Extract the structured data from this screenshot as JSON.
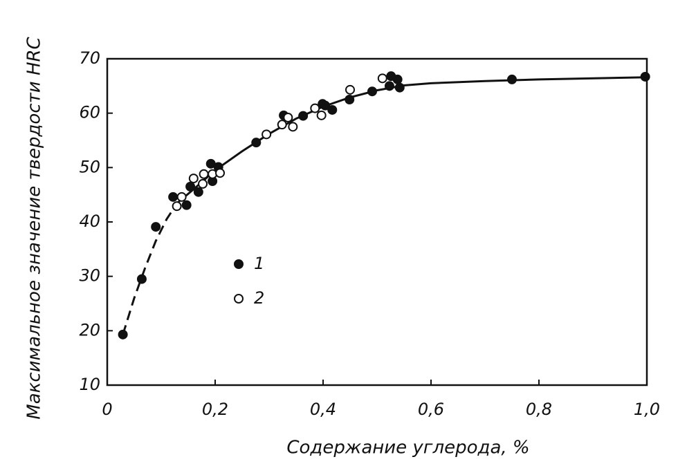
{
  "chart_data": {
    "type": "scatter",
    "x_label": "Содержание углерода, %",
    "y_label": "Максимальное значение твердости HRC",
    "xlim": [
      0,
      1.0
    ],
    "ylim": [
      10,
      70
    ],
    "xticks": [
      0,
      {
        "value": 0.2,
        "label": "0,2"
      },
      {
        "value": 0.4,
        "label": "0,4"
      },
      {
        "value": 0.6,
        "label": "0,6"
      },
      {
        "value": 0.8,
        "label": "0,8"
      },
      {
        "value": 1.0,
        "label": "1,0"
      }
    ],
    "yticks": [
      10,
      20,
      30,
      40,
      50,
      60,
      70
    ],
    "legend": "center-left",
    "series": [
      {
        "name": "1",
        "color": "#111111",
        "marker": "filled",
        "x": [
          0.029,
          0.064,
          0.09,
          0.122,
          0.147,
          0.154,
          0.169,
          0.192,
          0.195,
          0.206,
          0.276,
          0.327,
          0.363,
          0.399,
          0.404,
          0.417,
          0.449,
          0.491,
          0.526,
          0.523,
          0.538,
          0.542,
          0.75,
          0.997
        ],
        "values": [
          19.3,
          29.5,
          39.1,
          44.6,
          43.1,
          46.5,
          45.5,
          50.7,
          47.5,
          50.1,
          54.6,
          59.6,
          59.5,
          61.7,
          61.4,
          60.6,
          62.5,
          64.0,
          66.8,
          65.0,
          66.2,
          64.7,
          66.2,
          66.7
        ]
      },
      {
        "name": "2",
        "color": "#111111",
        "marker": "open",
        "x": [
          0.129,
          0.138,
          0.16,
          0.177,
          0.179,
          0.195,
          0.209,
          0.295,
          0.324,
          0.335,
          0.344,
          0.385,
          0.397,
          0.45,
          0.51
        ],
        "values": [
          42.9,
          44.6,
          48.0,
          47.0,
          48.8,
          48.8,
          49.0,
          56.1,
          57.9,
          59.2,
          57.5,
          60.9,
          59.6,
          64.3,
          66.4
        ]
      }
    ],
    "lines": [
      {
        "style": "dashed",
        "color": "#111111",
        "x": [
          0.029,
          0.05,
          0.07,
          0.09,
          0.11,
          0.13
        ],
        "values": [
          19.3,
          26,
          31.5,
          36.5,
          40.5,
          43.5
        ]
      },
      {
        "style": "solid",
        "color": "#111111",
        "x": [
          0.13,
          0.16,
          0.2,
          0.25,
          0.3,
          0.35,
          0.4,
          0.45,
          0.5,
          0.55,
          0.6,
          0.7,
          0.8,
          1.0
        ],
        "values": [
          43.5,
          46,
          49.5,
          53,
          56.2,
          59,
          61.2,
          62.9,
          64.2,
          65.1,
          65.5,
          65.9,
          66.2,
          66.6
        ]
      }
    ]
  }
}
